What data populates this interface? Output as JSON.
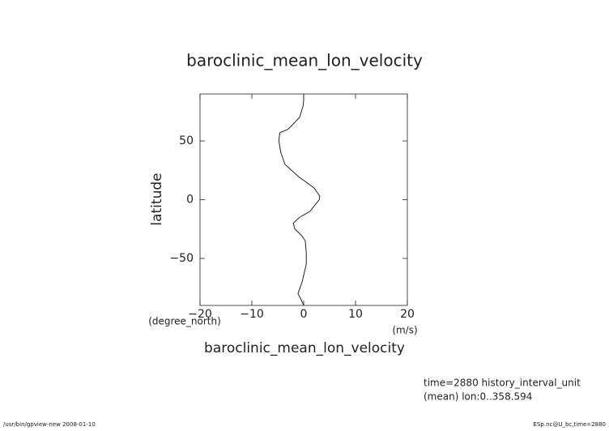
{
  "chart_data": {
    "type": "line",
    "title": "baroclinic_mean_lon_velocity",
    "x_label": "baroclinic_mean_lon_velocity",
    "x_unit": "(m/s)",
    "y_label": "latitude",
    "y_unit": "(degree_north)",
    "annotations": [
      "time=2880 history_interval_unit",
      "(mean) lon:0..358.594"
    ],
    "footer_left": "/usr/bin/gpview-new  2008-01-10",
    "footer_right": "ESp.nc@U_bc,time=2880",
    "color": "#222222",
    "x": [
      0,
      0,
      -0.1,
      -0.8,
      -3,
      -4.6,
      -4.8,
      -4.4,
      -3.6,
      -1.1,
      2,
      3.1,
      3,
      1.2,
      -0.8,
      -2,
      -1.7,
      -0.5,
      0.3,
      0.5,
      0.5,
      -0.3,
      -1.1,
      -0.5,
      0
    ],
    "y": [
      90,
      85,
      80,
      70,
      60,
      57,
      50,
      40,
      30,
      20,
      10,
      3,
      0,
      -10,
      -15,
      -20,
      -25,
      -30,
      -35,
      -45,
      -55,
      -70,
      -80,
      -85,
      -90
    ],
    "xlim": [
      -20,
      20
    ],
    "ylim": [
      -90,
      90
    ],
    "xticks": [
      {
        "value": -20,
        "label": "−20"
      },
      {
        "value": -10,
        "label": "−10"
      },
      0,
      10,
      20
    ],
    "yticks": [
      {
        "value": -50,
        "label": "−50"
      },
      0,
      50
    ],
    "grid": false
  }
}
